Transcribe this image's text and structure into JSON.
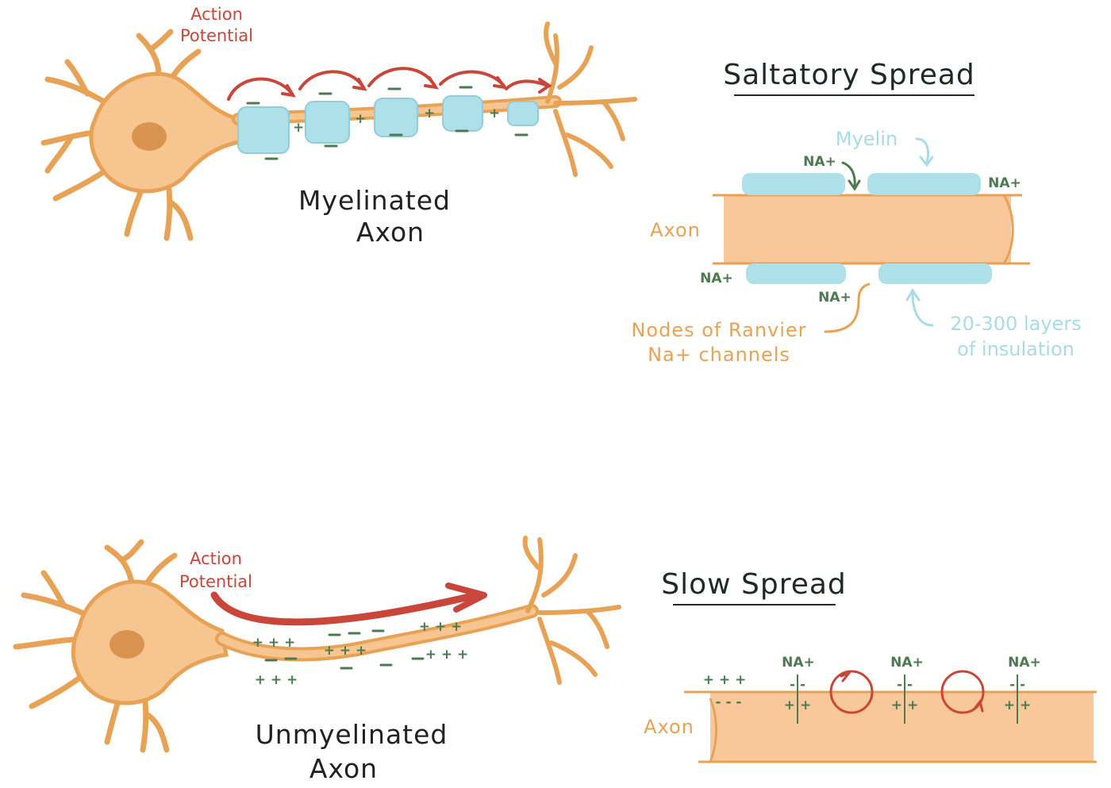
{
  "colors": {
    "neuron_fill": "#f7c590",
    "neuron_stroke": "#e8a256",
    "nucleus": "#d99450",
    "myelin": "#aee0ea",
    "myelin_stroke": "#92ccd8",
    "axon_band": "#f8c79a",
    "arrow_red": "#c8463a",
    "ion_green": "#4e7a52",
    "title_ink": "#1f2a22"
  },
  "top": {
    "action_potential_line1": "Action",
    "action_potential_line2": "Potential",
    "axon_label_line1": "Myelinated",
    "axon_label_line2": "Axon",
    "node_sign": "+"
  },
  "saltatory": {
    "title": "Saltatory Spread",
    "myelin_label": "Myelin",
    "axon_label": "Axon",
    "na_top_left": "NA+",
    "na_top_right": "NA+",
    "na_bottom_left": "NA+",
    "na_bottom_mid": "NA+",
    "nodes_line1": "Nodes of Ranvier",
    "nodes_line2": "Na+ channels",
    "layers_line1": "20-300 layers",
    "layers_line2": "of insulation"
  },
  "bottom": {
    "action_potential_line1": "Action",
    "action_potential_line2": "Potential",
    "axon_label_line1": "Unmyelinated",
    "axon_label_line2": "Axon",
    "plus_group": "+ + +"
  },
  "slow": {
    "title": "Slow Spread",
    "axon_label": "Axon",
    "na_1": "NA+",
    "na_2": "NA+",
    "na_3": "NA+",
    "plus_group": "+ + +",
    "minus_group": "- - -",
    "minus_pair": "- -",
    "plus_pair": "+ +"
  }
}
